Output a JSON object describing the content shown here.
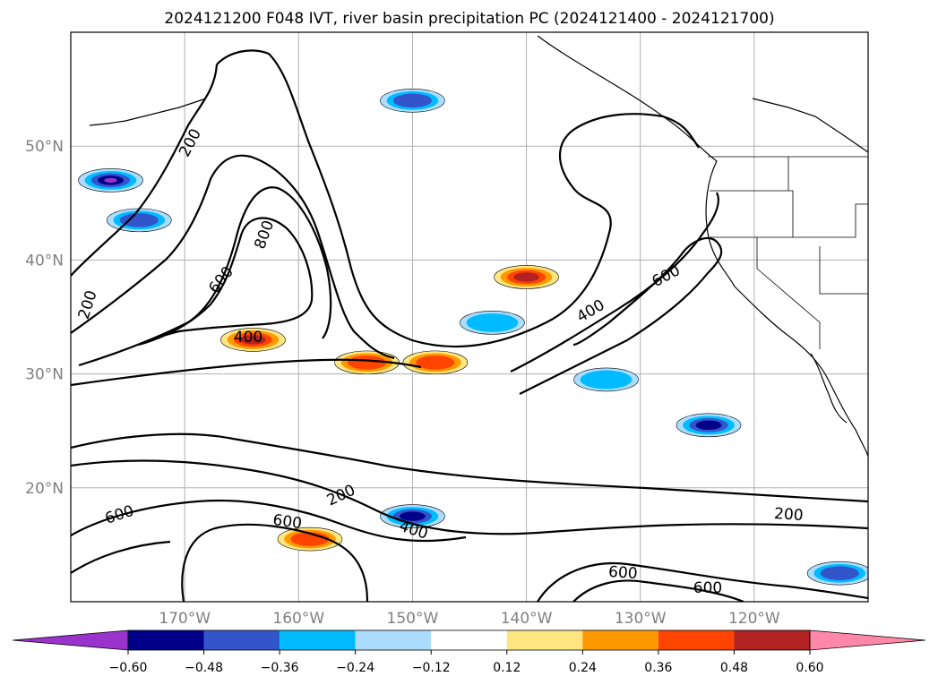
{
  "title": "2024121200 F048 IVT, river basin precipitation PC (2024121400 - 2024121700)",
  "map": {
    "lon_range": [
      -180,
      -110
    ],
    "lat_range": [
      10,
      60
    ],
    "lat_ticks": [
      {
        "value": 50,
        "label": "50°N"
      },
      {
        "value": 40,
        "label": "40°N"
      },
      {
        "value": 30,
        "label": "30°N"
      },
      {
        "value": 20,
        "label": "20°N"
      }
    ],
    "lon_ticks": [
      {
        "value": -170,
        "label": "170°W"
      },
      {
        "value": -160,
        "label": "160°W"
      },
      {
        "value": -150,
        "label": "150°W"
      },
      {
        "value": -140,
        "label": "140°W"
      },
      {
        "value": -130,
        "label": "130°W"
      },
      {
        "value": -120,
        "label": "120°W"
      }
    ],
    "grid": true
  },
  "ivt_contours": {
    "levels": [
      200,
      400,
      600,
      800
    ],
    "labels": [
      "200",
      "200",
      "800",
      "600",
      "400",
      "600",
      "400",
      "200",
      "600",
      "600",
      "400",
      "200",
      "600",
      "600"
    ]
  },
  "precip_pc_patches": [
    {
      "lon": -176.5,
      "lat": 47.0,
      "value": -0.62
    },
    {
      "lon": -174.0,
      "lat": 43.5,
      "value": -0.36
    },
    {
      "lon": -164.0,
      "lat": 33.0,
      "value": 0.5
    },
    {
      "lon": -148.0,
      "lat": 31.0,
      "value": 0.45
    },
    {
      "lon": -140.0,
      "lat": 38.5,
      "value": 0.52
    },
    {
      "lon": -124.0,
      "lat": 25.5,
      "value": -0.55
    },
    {
      "lon": -150.0,
      "lat": 17.5,
      "value": -0.5
    },
    {
      "lon": -159.0,
      "lat": 15.5,
      "value": 0.4
    },
    {
      "lon": -150.0,
      "lat": 54.0,
      "value": -0.45
    },
    {
      "lon": -143.0,
      "lat": 34.5,
      "value": -0.3
    },
    {
      "lon": -133.0,
      "lat": 29.5,
      "value": -0.3
    },
    {
      "lon": -154.0,
      "lat": 31.0,
      "value": 0.4
    },
    {
      "lon": -112.5,
      "lat": 12.5,
      "value": -0.4
    }
  ],
  "colorbar": {
    "colors": [
      "#9933cc",
      "#000088",
      "#3355cc",
      "#00bbff",
      "#aaddff",
      "#ffffff",
      "#ffe680",
      "#ff9900",
      "#ff4400",
      "#b22222",
      "#ff88aa"
    ],
    "ticks": [
      "−0.60",
      "−0.48",
      "−0.36",
      "−0.24",
      "−0.12",
      "0.12",
      "0.24",
      "0.36",
      "0.48",
      "0.60"
    ]
  }
}
